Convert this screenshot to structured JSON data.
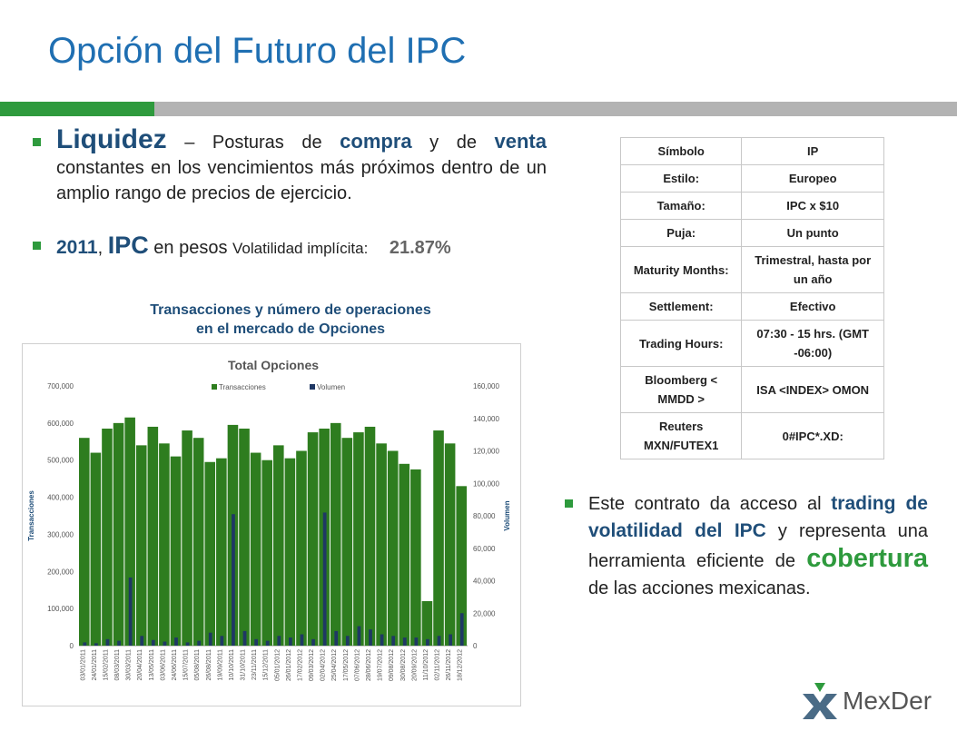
{
  "slide": {
    "title": "Opción del Futuro del IPC"
  },
  "bullets": {
    "b1": {
      "w1": "Liquidez",
      "w2": "– Posturas de",
      "w3": "compra",
      "w4": "y de",
      "w5": "venta",
      "w6": "constantes en los vencimientos más próximos dentro de un amplio rango de precios de ejercicio."
    },
    "b2": {
      "year": "2011",
      "comma": ",",
      "ipc": "IPC",
      "pesos": "en pesos",
      "vol_label": "Volatilidad implícita:",
      "vol_value": "21.87%"
    },
    "b3": {
      "t1": "Este contrato da acceso al",
      "t2": "trading de volatilidad del IPC",
      "t3": "y representa una herramienta eficiente de",
      "t4": "cobertura",
      "t5": "de las acciones mexicanas."
    }
  },
  "chart_caption": {
    "line1": "Transacciones y número de operaciones",
    "line2": "en el mercado de Opciones"
  },
  "chart_data": {
    "type": "bar",
    "title": "Total Opciones",
    "legend": [
      "Transacciones",
      "Volumen"
    ],
    "legend_position": "top",
    "ylabel_left": "Transacciones",
    "ylabel_right": "Volumen",
    "ylim_left": [
      0,
      700000
    ],
    "ylim_right": [
      0,
      160000
    ],
    "yticks_left": [
      "0",
      "100,000",
      "200,000",
      "300,000",
      "400,000",
      "500,000",
      "600,000",
      "700,000"
    ],
    "yticks_right": [
      "0",
      "20,000",
      "40,000",
      "60,000",
      "80,000",
      "100,000",
      "120,000",
      "140,000",
      "160,000"
    ],
    "x_dates": [
      "03/01/2011",
      "24/01/2011",
      "15/02/2011",
      "08/03/2011",
      "30/03/2011",
      "20/04/2011",
      "13/05/2011",
      "03/06/2011",
      "24/06/2011",
      "15/07/2011",
      "05/08/2011",
      "26/08/2011",
      "19/09/2011",
      "10/10/2011",
      "31/10/2011",
      "23/11/2011",
      "15/12/2011",
      "05/01/2012",
      "26/01/2012",
      "17/02/2012",
      "09/03/2012",
      "02/04/2012",
      "25/04/2012",
      "17/05/2012",
      "07/06/2012",
      "28/06/2012",
      "19/07/2012",
      "09/08/2012",
      "30/08/2012",
      "20/09/2012",
      "11/10/2012",
      "02/11/2012",
      "26/11/2012",
      "18/12/2012"
    ],
    "transacciones": [
      560000,
      520000,
      585000,
      600000,
      615000,
      540000,
      590000,
      545000,
      510000,
      580000,
      560000,
      495000,
      505000,
      595000,
      585000,
      520000,
      500000,
      540000,
      505000,
      525000,
      575000,
      585000,
      600000,
      560000,
      575000,
      590000,
      545000,
      525000,
      490000,
      475000,
      120000,
      580000,
      545000,
      430000
    ],
    "volumen": [
      2000,
      1500,
      4000,
      3000,
      42000,
      6000,
      3500,
      2500,
      5000,
      2000,
      3000,
      8000,
      6000,
      81000,
      9000,
      4000,
      3000,
      6000,
      5000,
      7000,
      4000,
      82000,
      9000,
      6000,
      12000,
      10000,
      7000,
      6000,
      5000,
      5000,
      4000,
      6000,
      7000,
      20000
    ],
    "colors": {
      "transacciones": "#2e7d1f",
      "volumen": "#1f3864"
    }
  },
  "spec_table": [
    [
      "Símbolo",
      "IP"
    ],
    [
      "Estilo:",
      "Europeo"
    ],
    [
      "Tamaño:",
      "IPC x $10"
    ],
    [
      "Puja:",
      "Un punto"
    ],
    [
      "Maturity Months:",
      "Trimestral, hasta por un año"
    ],
    [
      "Settlement:",
      "Efectivo"
    ],
    [
      "Trading Hours:",
      "07:30 - 15 hrs. (GMT -06:00)"
    ],
    [
      "Bloomberg < MMDD >",
      "ISA <INDEX> OMON"
    ],
    [
      "Reuters MXN/FUTEX1",
      "0#IPC*.XD:"
    ]
  ],
  "logo": {
    "text": "MexDer"
  },
  "colors": {
    "accent_green": "#2e9a3d",
    "title_blue": "#1f6fb2",
    "dark_blue": "#1f4e79"
  }
}
